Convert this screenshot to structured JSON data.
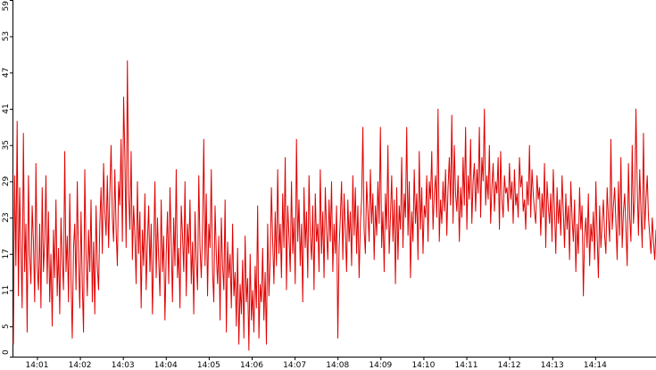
{
  "chart_data": {
    "type": "line",
    "title": "",
    "xlabel": "",
    "ylabel": "",
    "ylim": [
      0,
      59
    ],
    "yticks": [
      0,
      5,
      11,
      17,
      23,
      29,
      35,
      41,
      47,
      53,
      59
    ],
    "xticks": [
      "14:01",
      "14:02",
      "14:03",
      "14:04",
      "14:05",
      "14:06",
      "14:07",
      "14:08",
      "14:09",
      "14:10",
      "14:11",
      "14:12",
      "14:13",
      "14:14"
    ],
    "x_start": "14:00:27",
    "x_end": "14:15:25",
    "grid": false,
    "legend": "none",
    "line_color": "#e00000",
    "series": [
      {
        "values": [
          2,
          30,
          15,
          39,
          10,
          28,
          18,
          8,
          37,
          14,
          22,
          4,
          30,
          17,
          12,
          25,
          19,
          9,
          32,
          15,
          11,
          22,
          8,
          28,
          14,
          19,
          30,
          12,
          24,
          9,
          17,
          5,
          21,
          13,
          26,
          10,
          18,
          7,
          23,
          16,
          11,
          34,
          14,
          20,
          9,
          27,
          13,
          3,
          18,
          22,
          11,
          29,
          16,
          8,
          24,
          12,
          4,
          31,
          17,
          10,
          21,
          14,
          26,
          9,
          19,
          7,
          25,
          15,
          11,
          22,
          28,
          17,
          32,
          24,
          20,
          30,
          18,
          27,
          35,
          23,
          19,
          31,
          21,
          15,
          29,
          25,
          36,
          19,
          43,
          33,
          18,
          49,
          27,
          21,
          34,
          16,
          25,
          20,
          12,
          29,
          17,
          24,
          8,
          21,
          15,
          27,
          11,
          19,
          25,
          14,
          22,
          7,
          18,
          29,
          13,
          23,
          16,
          10,
          26,
          14,
          20,
          6,
          17,
          24,
          12,
          28,
          19,
          9,
          23,
          15,
          31,
          13,
          18,
          8,
          25,
          20,
          14,
          29,
          10,
          22,
          17,
          26,
          12,
          19,
          7,
          24,
          16,
          11,
          30,
          18,
          13,
          21,
          36,
          15,
          27,
          10,
          22,
          18,
          31,
          14,
          9,
          25,
          17,
          12,
          20,
          6,
          23,
          15,
          11,
          26,
          4,
          19,
          13,
          17,
          8,
          22,
          10,
          14,
          5,
          18,
          2,
          12,
          7,
          16,
          3,
          20,
          9,
          13,
          1,
          17,
          6,
          11,
          4,
          15,
          8,
          25,
          3,
          12,
          9,
          18,
          6,
          14,
          2,
          22,
          10,
          16,
          28,
          19,
          12,
          24,
          15,
          31,
          17,
          22,
          13,
          27,
          18,
          33,
          11,
          25,
          20,
          14,
          29,
          17,
          23,
          12,
          36,
          19,
          26,
          15,
          22,
          9,
          28,
          18,
          24,
          13,
          30,
          20,
          16,
          25,
          11,
          27,
          19,
          22,
          14,
          31,
          17,
          24,
          13,
          28,
          21,
          16,
          26,
          19,
          29,
          14,
          22,
          17,
          25,
          3,
          18,
          23,
          29,
          16,
          27,
          21,
          14,
          26,
          19,
          24,
          15,
          30,
          20,
          28,
          17,
          25,
          13,
          22,
          26,
          38,
          21,
          17,
          29,
          24,
          19,
          31,
          22,
          27,
          16,
          25,
          20,
          29,
          22,
          38,
          18,
          24,
          14,
          27,
          21,
          35,
          17,
          23,
          30,
          19,
          26,
          12,
          28,
          16,
          25,
          21,
          33,
          18,
          27,
          23,
          38,
          20,
          29,
          13,
          24,
          19,
          31,
          22,
          27,
          16,
          34,
          21,
          28,
          17,
          25,
          23,
          30,
          19,
          29,
          26,
          34,
          21,
          27,
          30,
          23,
          41,
          19,
          26,
          22,
          29,
          24,
          31,
          20,
          28,
          33,
          25,
          40,
          22,
          35,
          27,
          24,
          30,
          19,
          28,
          23,
          33,
          25,
          38,
          21,
          30,
          26,
          36,
          22,
          29,
          32,
          24,
          31,
          27,
          38,
          23,
          33,
          29,
          41,
          25,
          30,
          26,
          35,
          22,
          28,
          32,
          24,
          29,
          27,
          33,
          21,
          34,
          26,
          23,
          30,
          27,
          28,
          24,
          32,
          26,
          29,
          22,
          31,
          25,
          27,
          23,
          33,
          28,
          30,
          24,
          26,
          21,
          29,
          25,
          35,
          23,
          31,
          27,
          24,
          22,
          30,
          26,
          28,
          20,
          27,
          23,
          32,
          18,
          29,
          25,
          22,
          27,
          19,
          31,
          24,
          17,
          28,
          22,
          26,
          20,
          30,
          24,
          18,
          27,
          21,
          25,
          16,
          29,
          23,
          19,
          26,
          14,
          22,
          17,
          28,
          21,
          25,
          10,
          20,
          23,
          18,
          27,
          15,
          22,
          19,
          24,
          16,
          29,
          20,
          13,
          25,
          18,
          22,
          26,
          20,
          17,
          28,
          23,
          19,
          36,
          21,
          25,
          28,
          22,
          16,
          29,
          20,
          33,
          18,
          24,
          27,
          21,
          15,
          32,
          23,
          19,
          35,
          22,
          26,
          41,
          28,
          20,
          31,
          24,
          18,
          37,
          21,
          26,
          30,
          23,
          20,
          17,
          23,
          19,
          16,
          21
        ]
      }
    ]
  }
}
